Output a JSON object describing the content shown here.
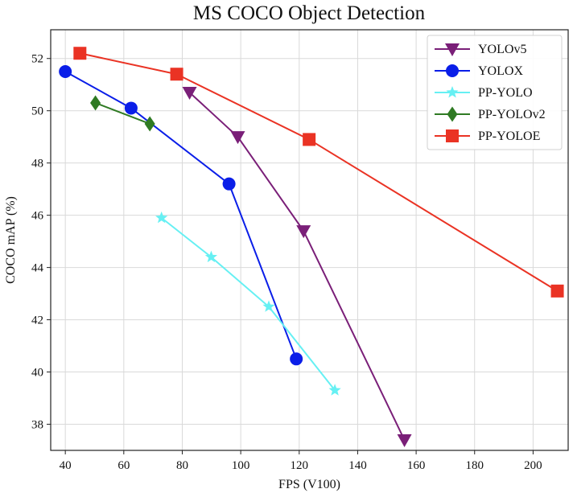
{
  "chart_data": {
    "type": "line",
    "title": "MS COCO Object Detection",
    "xlabel": "FPS (V100)",
    "ylabel": "COCO mAP (%)",
    "xlim": [
      35,
      212
    ],
    "ylim": [
      37.0,
      53.1
    ],
    "xticks": [
      40,
      60,
      80,
      100,
      120,
      140,
      160,
      180,
      200
    ],
    "yticks": [
      38,
      40,
      42,
      44,
      46,
      48,
      50,
      52
    ],
    "grid": true,
    "legend_position": "top-right",
    "series": [
      {
        "name": "YOLOv5",
        "color": "#7a1f78",
        "marker": "triangle-down",
        "points": [
          {
            "x": 82.5,
            "y": 50.7
          },
          {
            "x": 99.0,
            "y": 49.0
          },
          {
            "x": 121.5,
            "y": 45.4
          },
          {
            "x": 156.0,
            "y": 37.4
          }
        ]
      },
      {
        "name": "YOLOX",
        "color": "#0a1ee8",
        "marker": "circle",
        "points": [
          {
            "x": 40.0,
            "y": 51.5
          },
          {
            "x": 62.5,
            "y": 50.1
          },
          {
            "x": 96.0,
            "y": 47.2
          },
          {
            "x": 119.0,
            "y": 40.5
          }
        ]
      },
      {
        "name": "PP-YOLO",
        "color": "#66f0f3",
        "marker": "star",
        "points": [
          {
            "x": 72.9,
            "y": 45.9
          },
          {
            "x": 89.9,
            "y": 44.4
          },
          {
            "x": 109.6,
            "y": 42.5
          },
          {
            "x": 132.2,
            "y": 39.3
          }
        ]
      },
      {
        "name": "PP-YOLOv2",
        "color": "#2f7a23",
        "marker": "diamond",
        "points": [
          {
            "x": 50.3,
            "y": 50.3
          },
          {
            "x": 68.9,
            "y": 49.5
          }
        ]
      },
      {
        "name": "PP-YOLOE",
        "color": "#ea3324",
        "marker": "square",
        "points": [
          {
            "x": 45.0,
            "y": 52.2
          },
          {
            "x": 78.1,
            "y": 51.4
          },
          {
            "x": 123.4,
            "y": 48.9
          },
          {
            "x": 208.3,
            "y": 43.1
          }
        ]
      }
    ]
  }
}
